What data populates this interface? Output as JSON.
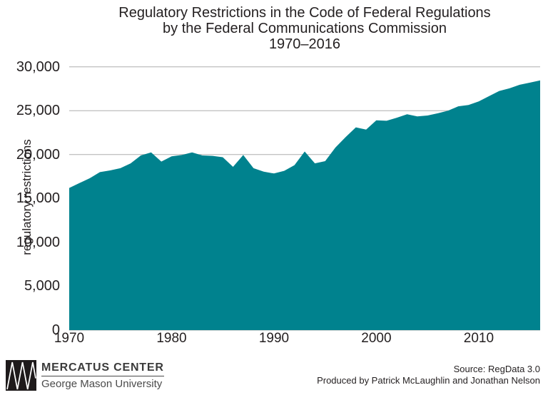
{
  "title": {
    "line1": "Regulatory Restrictions in the Code of Federal Regulations",
    "line2": "by the Federal Communications Commission",
    "line3": "1970–2016"
  },
  "colors": {
    "area": "#00828E",
    "grid": "#ADADAD",
    "text": "#231F20"
  },
  "chart_data": {
    "type": "area",
    "title": "Regulatory Restrictions in the Code of Federal Regulations by the Federal Communications Commission 1970–2016",
    "xlabel": "",
    "ylabel": "regulatory restrictions",
    "xlim": [
      1970,
      2016
    ],
    "ylim": [
      0,
      30000
    ],
    "grid": true,
    "legend": "none",
    "x_ticks": [
      1970,
      1980,
      1990,
      2000,
      2010
    ],
    "y_ticks": [
      0,
      5000,
      10000,
      15000,
      20000,
      25000,
      30000
    ],
    "x": [
      1970,
      1971,
      1972,
      1973,
      1974,
      1975,
      1976,
      1977,
      1978,
      1979,
      1980,
      1981,
      1982,
      1983,
      1984,
      1985,
      1986,
      1987,
      1988,
      1989,
      1990,
      1991,
      1992,
      1993,
      1994,
      1995,
      1996,
      1997,
      1998,
      1999,
      2000,
      2001,
      2002,
      2003,
      2004,
      2005,
      2006,
      2007,
      2008,
      2009,
      2010,
      2011,
      2012,
      2013,
      2014,
      2015,
      2016
    ],
    "values": [
      16200,
      16750,
      17300,
      18000,
      18200,
      18450,
      19000,
      19900,
      20250,
      19200,
      19800,
      19950,
      20250,
      19900,
      19850,
      19700,
      18600,
      19950,
      18450,
      18050,
      17850,
      18150,
      18800,
      20350,
      19000,
      19250,
      20800,
      22000,
      23100,
      22850,
      23900,
      23850,
      24200,
      24600,
      24350,
      24450,
      24700,
      25000,
      25500,
      25650,
      26050,
      26650,
      27250,
      27550,
      27950,
      28200,
      28450
    ]
  },
  "footer": {
    "source_line1": "Source: RegData 3.0",
    "source_line2": "Produced by Patrick McLaughlin and Jonathan Nelson",
    "logo_name": "MERCATUS CENTER",
    "logo_sub": "George Mason University"
  }
}
